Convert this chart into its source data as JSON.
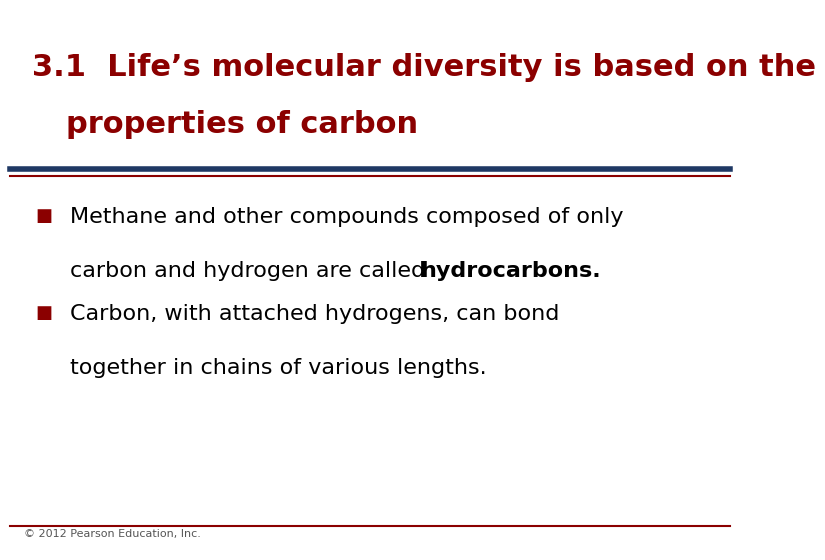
{
  "title_line1": "3.1  Life’s molecular diversity is based on the",
  "title_line2": "properties of carbon",
  "title_color": "#8B0000",
  "title_fontsize": 22,
  "divider_color_top": "#1F3864",
  "divider_color_bottom": "#8B0000",
  "bullet_color": "#8B0000",
  "body_fontsize": 16,
  "footer_text": "© 2012 Pearson Education, Inc.",
  "footer_fontsize": 8,
  "footer_color": "#555555",
  "background_color": "#FFFFFF",
  "bottom_line_color": "#8B0000"
}
